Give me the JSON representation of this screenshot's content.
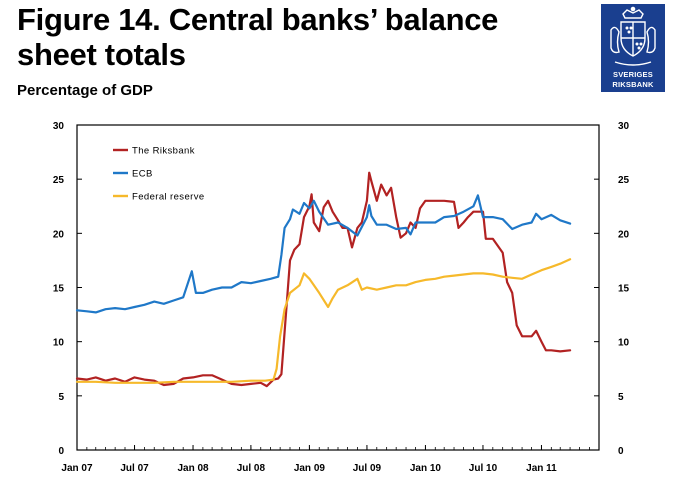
{
  "header": {
    "title": "Figure 14. Central banks’ balance sheet totals",
    "subtitle": "Percentage of GDP"
  },
  "logo": {
    "icon": "riksbank-crest-icon",
    "line1": "SVERIGES",
    "line2": "RIKSBANK",
    "color": "#1a3f8f"
  },
  "chart_data": {
    "type": "line",
    "title": "Figure 14. Central banks’ balance sheet totals",
    "subtitle": "Percentage of GDP",
    "ylim": [
      0,
      30
    ],
    "yticks": [
      "0",
      "5",
      "10",
      "15",
      "20",
      "25",
      "30"
    ],
    "yticks_right": [
      "0",
      "5",
      "10",
      "15",
      "20",
      "25",
      "30"
    ],
    "xlim": [
      "2007-01-01",
      "2011-07-01"
    ],
    "xticks": [
      {
        "date": "2007-01-01",
        "label": "Jan 07"
      },
      {
        "date": "2007-07-01",
        "label": "Jul 07"
      },
      {
        "date": "2008-01-01",
        "label": "Jan 08"
      },
      {
        "date": "2008-07-01",
        "label": "Jul 08"
      },
      {
        "date": "2009-01-01",
        "label": "Jan 09"
      },
      {
        "date": "2009-07-01",
        "label": "Jul 09"
      },
      {
        "date": "2010-01-01",
        "label": "Jan 10"
      },
      {
        "date": "2010-07-01",
        "label": "Jul 10"
      },
      {
        "date": "2011-01-01",
        "label": "Jan 11"
      }
    ],
    "grid": false,
    "legend_position": "top-left",
    "series": [
      {
        "name": "The Riksbank",
        "color": "#b22222",
        "points": [
          [
            "2007-01-01",
            6.6
          ],
          [
            "2007-02-01",
            6.5
          ],
          [
            "2007-03-01",
            6.7
          ],
          [
            "2007-04-01",
            6.4
          ],
          [
            "2007-05-01",
            6.6
          ],
          [
            "2007-06-01",
            6.3
          ],
          [
            "2007-07-01",
            6.7
          ],
          [
            "2007-08-01",
            6.5
          ],
          [
            "2007-09-01",
            6.4
          ],
          [
            "2007-10-01",
            6.0
          ],
          [
            "2007-11-01",
            6.1
          ],
          [
            "2007-12-01",
            6.6
          ],
          [
            "2008-01-01",
            6.7
          ],
          [
            "2008-02-01",
            6.9
          ],
          [
            "2008-03-01",
            6.9
          ],
          [
            "2008-04-01",
            6.5
          ],
          [
            "2008-05-01",
            6.1
          ],
          [
            "2008-06-01",
            6.0
          ],
          [
            "2008-07-01",
            6.1
          ],
          [
            "2008-08-01",
            6.2
          ],
          [
            "2008-08-20",
            5.9
          ],
          [
            "2008-09-10",
            6.5
          ],
          [
            "2008-09-25",
            6.6
          ],
          [
            "2008-10-05",
            7.0
          ],
          [
            "2008-10-18",
            12.0
          ],
          [
            "2008-11-01",
            17.5
          ],
          [
            "2008-11-15",
            18.5
          ],
          [
            "2008-12-01",
            19.0
          ],
          [
            "2008-12-15",
            21.5
          ],
          [
            "2009-01-01",
            22.5
          ],
          [
            "2009-01-08",
            23.6
          ],
          [
            "2009-01-15",
            21.0
          ],
          [
            "2009-02-01",
            20.2
          ],
          [
            "2009-02-15",
            22.4
          ],
          [
            "2009-03-01",
            23.0
          ],
          [
            "2009-03-15",
            22.0
          ],
          [
            "2009-04-01",
            21.2
          ],
          [
            "2009-04-15",
            20.5
          ],
          [
            "2009-05-01",
            20.5
          ],
          [
            "2009-05-15",
            18.7
          ],
          [
            "2009-06-01",
            20.5
          ],
          [
            "2009-06-15",
            21.0
          ],
          [
            "2009-07-01",
            23.0
          ],
          [
            "2009-07-08",
            25.6
          ],
          [
            "2009-07-15",
            24.8
          ],
          [
            "2009-08-01",
            23.0
          ],
          [
            "2009-08-15",
            24.5
          ],
          [
            "2009-09-01",
            23.5
          ],
          [
            "2009-09-15",
            24.2
          ],
          [
            "2009-10-01",
            21.5
          ],
          [
            "2009-10-15",
            19.6
          ],
          [
            "2009-11-01",
            20.0
          ],
          [
            "2009-11-15",
            21.0
          ],
          [
            "2009-12-01",
            20.5
          ],
          [
            "2009-12-15",
            22.3
          ],
          [
            "2010-01-01",
            23.0
          ],
          [
            "2010-02-01",
            23.0
          ],
          [
            "2010-03-01",
            23.0
          ],
          [
            "2010-04-01",
            22.9
          ],
          [
            "2010-04-15",
            20.5
          ],
          [
            "2010-05-01",
            21.0
          ],
          [
            "2010-05-15",
            21.5
          ],
          [
            "2010-06-01",
            22.0
          ],
          [
            "2010-07-01",
            22.0
          ],
          [
            "2010-07-10",
            19.5
          ],
          [
            "2010-08-01",
            19.5
          ],
          [
            "2010-09-01",
            18.2
          ],
          [
            "2010-09-15",
            15.5
          ],
          [
            "2010-10-01",
            14.5
          ],
          [
            "2010-10-15",
            11.5
          ],
          [
            "2010-11-01",
            10.5
          ],
          [
            "2010-12-01",
            10.5
          ],
          [
            "2010-12-15",
            11.0
          ],
          [
            "2011-01-01",
            10.0
          ],
          [
            "2011-01-15",
            9.2
          ],
          [
            "2011-02-01",
            9.2
          ],
          [
            "2011-03-01",
            9.1
          ],
          [
            "2011-04-01",
            9.2
          ]
        ]
      },
      {
        "name": "ECB",
        "color": "#1f78c8",
        "points": [
          [
            "2007-01-01",
            12.9
          ],
          [
            "2007-02-01",
            12.8
          ],
          [
            "2007-03-01",
            12.7
          ],
          [
            "2007-04-01",
            13.0
          ],
          [
            "2007-05-01",
            13.1
          ],
          [
            "2007-06-01",
            13.0
          ],
          [
            "2007-07-01",
            13.2
          ],
          [
            "2007-08-01",
            13.4
          ],
          [
            "2007-09-01",
            13.7
          ],
          [
            "2007-10-01",
            13.5
          ],
          [
            "2007-11-01",
            13.8
          ],
          [
            "2007-12-01",
            14.1
          ],
          [
            "2007-12-28",
            16.5
          ],
          [
            "2008-01-10",
            14.5
          ],
          [
            "2008-02-01",
            14.5
          ],
          [
            "2008-03-01",
            14.8
          ],
          [
            "2008-04-01",
            15.0
          ],
          [
            "2008-05-01",
            15.0
          ],
          [
            "2008-06-01",
            15.5
          ],
          [
            "2008-07-01",
            15.4
          ],
          [
            "2008-08-01",
            15.6
          ],
          [
            "2008-09-01",
            15.8
          ],
          [
            "2008-09-25",
            16.0
          ],
          [
            "2008-10-05",
            18.0
          ],
          [
            "2008-10-15",
            20.5
          ],
          [
            "2008-11-01",
            21.3
          ],
          [
            "2008-11-10",
            22.2
          ],
          [
            "2008-12-01",
            21.8
          ],
          [
            "2008-12-15",
            22.8
          ],
          [
            "2009-01-01",
            22.3
          ],
          [
            "2009-01-15",
            23.0
          ],
          [
            "2009-02-01",
            22.0
          ],
          [
            "2009-03-01",
            20.8
          ],
          [
            "2009-04-01",
            21.0
          ],
          [
            "2009-05-01",
            20.5
          ],
          [
            "2009-06-01",
            19.8
          ],
          [
            "2009-07-01",
            21.5
          ],
          [
            "2009-07-08",
            22.6
          ],
          [
            "2009-07-15",
            21.6
          ],
          [
            "2009-08-01",
            20.8
          ],
          [
            "2009-09-01",
            20.8
          ],
          [
            "2009-10-01",
            20.4
          ],
          [
            "2009-11-01",
            20.5
          ],
          [
            "2009-11-15",
            19.9
          ],
          [
            "2009-12-01",
            21.0
          ],
          [
            "2010-01-01",
            21.0
          ],
          [
            "2010-02-01",
            21.0
          ],
          [
            "2010-03-01",
            21.5
          ],
          [
            "2010-04-01",
            21.6
          ],
          [
            "2010-05-01",
            22.0
          ],
          [
            "2010-06-01",
            22.5
          ],
          [
            "2010-06-15",
            23.5
          ],
          [
            "2010-07-01",
            21.5
          ],
          [
            "2010-08-01",
            21.5
          ],
          [
            "2010-09-01",
            21.3
          ],
          [
            "2010-10-01",
            20.4
          ],
          [
            "2010-11-01",
            20.8
          ],
          [
            "2010-12-01",
            21.0
          ],
          [
            "2010-12-15",
            21.8
          ],
          [
            "2011-01-01",
            21.3
          ],
          [
            "2011-02-01",
            21.7
          ],
          [
            "2011-03-01",
            21.2
          ],
          [
            "2011-04-01",
            20.9
          ]
        ]
      },
      {
        "name": "Federal reserve",
        "color": "#f6b92b",
        "points": [
          [
            "2007-01-01",
            6.3
          ],
          [
            "2007-03-01",
            6.3
          ],
          [
            "2007-05-01",
            6.2
          ],
          [
            "2007-07-01",
            6.2
          ],
          [
            "2007-09-01",
            6.2
          ],
          [
            "2007-11-01",
            6.3
          ],
          [
            "2008-01-01",
            6.3
          ],
          [
            "2008-03-01",
            6.3
          ],
          [
            "2008-05-01",
            6.3
          ],
          [
            "2008-07-01",
            6.4
          ],
          [
            "2008-08-15",
            6.4
          ],
          [
            "2008-09-10",
            6.5
          ],
          [
            "2008-09-20",
            7.5
          ],
          [
            "2008-10-01",
            10.5
          ],
          [
            "2008-10-15",
            13.0
          ],
          [
            "2008-11-01",
            14.5
          ],
          [
            "2008-12-01",
            15.2
          ],
          [
            "2008-12-15",
            16.3
          ],
          [
            "2009-01-01",
            15.8
          ],
          [
            "2009-02-01",
            14.5
          ],
          [
            "2009-03-01",
            13.2
          ],
          [
            "2009-03-15",
            14.0
          ],
          [
            "2009-04-01",
            14.8
          ],
          [
            "2009-05-01",
            15.2
          ],
          [
            "2009-06-01",
            15.8
          ],
          [
            "2009-06-15",
            14.8
          ],
          [
            "2009-07-01",
            15.0
          ],
          [
            "2009-08-01",
            14.8
          ],
          [
            "2009-09-01",
            15.0
          ],
          [
            "2009-10-01",
            15.2
          ],
          [
            "2009-11-01",
            15.2
          ],
          [
            "2009-12-01",
            15.5
          ],
          [
            "2010-01-01",
            15.7
          ],
          [
            "2010-02-01",
            15.8
          ],
          [
            "2010-03-01",
            16.0
          ],
          [
            "2010-04-01",
            16.1
          ],
          [
            "2010-05-01",
            16.2
          ],
          [
            "2010-06-01",
            16.3
          ],
          [
            "2010-07-01",
            16.3
          ],
          [
            "2010-08-01",
            16.2
          ],
          [
            "2010-09-01",
            16.0
          ],
          [
            "2010-10-01",
            15.9
          ],
          [
            "2010-11-01",
            15.8
          ],
          [
            "2010-12-01",
            16.2
          ],
          [
            "2011-01-01",
            16.6
          ],
          [
            "2011-02-01",
            16.9
          ],
          [
            "2011-03-01",
            17.2
          ],
          [
            "2011-04-01",
            17.6
          ]
        ]
      }
    ]
  }
}
